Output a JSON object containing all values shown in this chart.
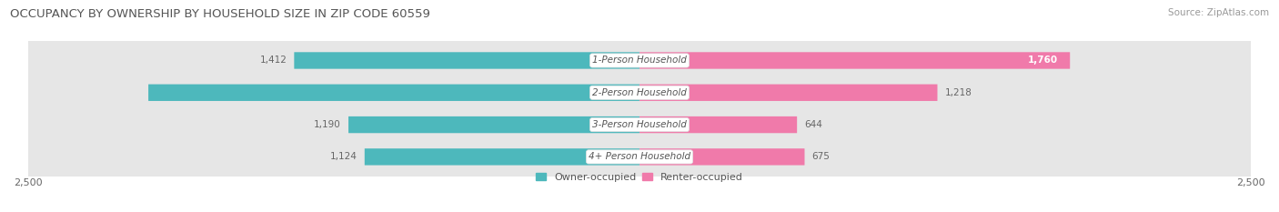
{
  "title": "OCCUPANCY BY OWNERSHIP BY HOUSEHOLD SIZE IN ZIP CODE 60559",
  "source": "Source: ZipAtlas.com",
  "categories": [
    "1-Person Household",
    "2-Person Household",
    "3-Person Household",
    "4+ Person Household"
  ],
  "owner_values": [
    1412,
    2008,
    1190,
    1124
  ],
  "renter_values": [
    1760,
    1218,
    644,
    675
  ],
  "owner_color": "#4db8bc",
  "renter_color": "#f07aaa",
  "axis_max": 2500,
  "bar_height": 0.52,
  "background_color": "#ffffff",
  "row_bg_even": "#f2f2f2",
  "row_bg_odd": "#e6e6e6",
  "title_fontsize": 9.5,
  "source_fontsize": 7.5,
  "tick_fontsize": 8,
  "value_fontsize": 7.5,
  "label_fontsize": 7.5,
  "legend_fontsize": 8
}
